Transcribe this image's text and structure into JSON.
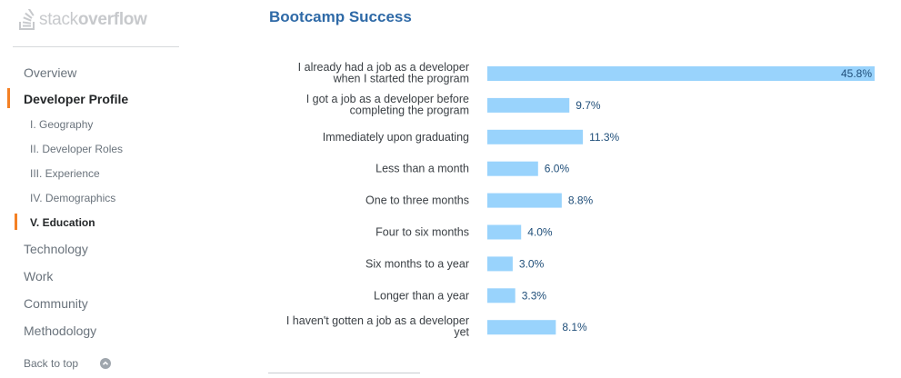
{
  "logo": {
    "text_light": "stack",
    "text_bold": "overflow",
    "icon": "stack-overflow-logo-icon"
  },
  "sidebar": {
    "items": [
      {
        "label": "Overview"
      },
      {
        "label": "Developer Profile",
        "active": true
      },
      {
        "label": "Technology"
      },
      {
        "label": "Work"
      },
      {
        "label": "Community"
      },
      {
        "label": "Methodology"
      }
    ],
    "subitems": [
      {
        "label": "I. Geography"
      },
      {
        "label": "II. Developer Roles"
      },
      {
        "label": "III. Experience"
      },
      {
        "label": "IV. Demographics"
      },
      {
        "label": "V. Education",
        "active": true
      }
    ],
    "back_to_top": "Back to top",
    "back_to_top_icon": "chevron-up-circle-icon"
  },
  "colors": {
    "bar": "#99d3fc",
    "accent": "#f48024",
    "title": "#2f6aa7"
  },
  "chart_data": {
    "type": "bar",
    "orientation": "horizontal",
    "title": "Bootcamp Success",
    "categories": [
      "I already had a job as a developer when I started the program",
      "I got a job as a developer before completing the program",
      "Immediately upon graduating",
      "Less than a month",
      "One to three months",
      "Four to six months",
      "Six months to a year",
      "Longer than a year",
      "I haven't gotten a job as a developer yet"
    ],
    "category_lines": [
      [
        "I already had a job as a developer",
        "when I started the program"
      ],
      [
        "I got a job as a developer before",
        "completing the program"
      ],
      [
        "Immediately upon graduating"
      ],
      [
        "Less than a month"
      ],
      [
        "One to three months"
      ],
      [
        "Four to six months"
      ],
      [
        "Six months to a year"
      ],
      [
        "Longer than a year"
      ],
      [
        "I haven't gotten a job as a developer",
        "yet"
      ]
    ],
    "values": [
      45.8,
      9.7,
      11.3,
      6.0,
      8.8,
      4.0,
      3.0,
      3.3,
      8.1
    ],
    "value_labels": [
      "45.8%",
      "9.7%",
      "11.3%",
      "6.0%",
      "8.8%",
      "4.0%",
      "3.0%",
      "3.3%",
      "8.1%"
    ],
    "xlim": [
      0,
      45.8
    ],
    "grid": false,
    "legend": "none"
  }
}
